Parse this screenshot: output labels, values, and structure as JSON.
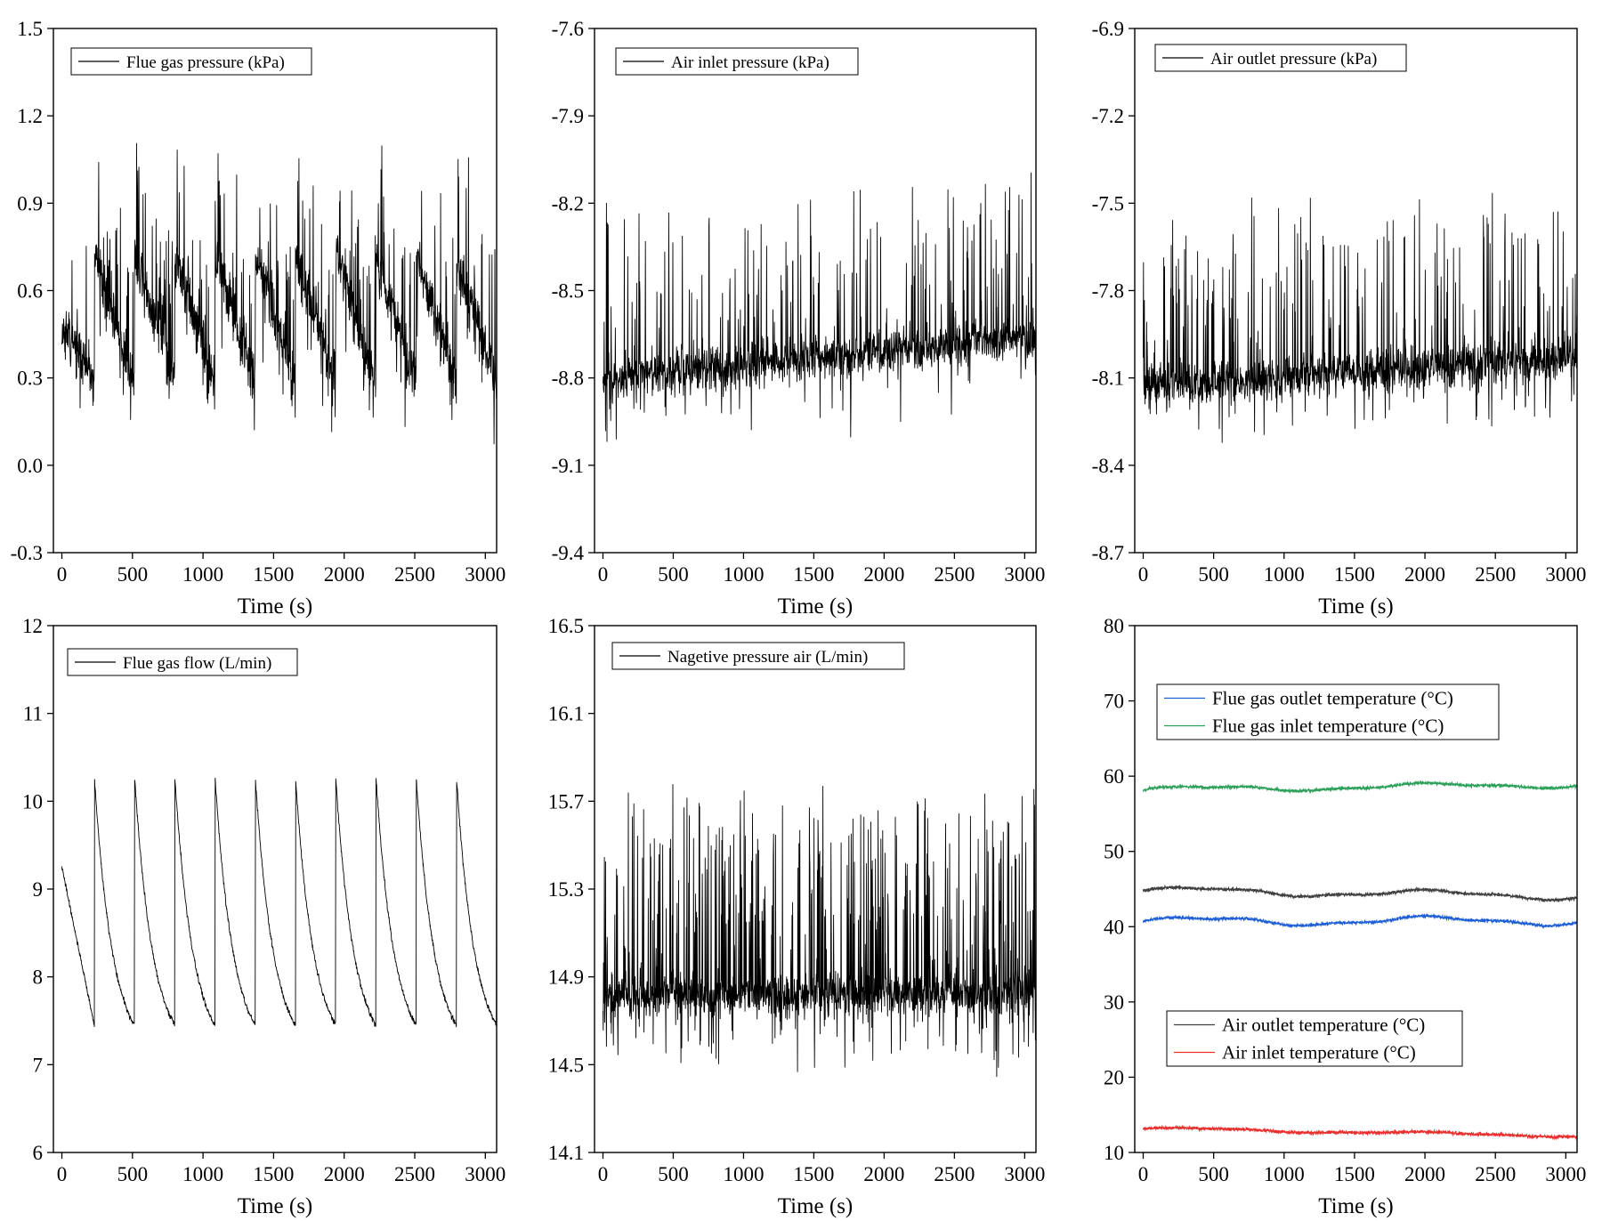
{
  "chart_data": [
    {
      "type": "line",
      "xlabel": "Time (s)",
      "x_ticks": [
        0,
        500,
        1000,
        1500,
        2000,
        2500,
        3000
      ],
      "xlim": [
        -60,
        3080
      ],
      "y_ticks": [
        -0.3,
        0.0,
        0.3,
        0.6,
        0.9,
        1.2,
        1.5
      ],
      "y_tick_labels": [
        "-0.3",
        "0.0",
        "0.3",
        "0.6",
        "0.9",
        "1.2",
        "1.5"
      ],
      "ylim": [
        -0.3,
        1.5
      ],
      "legend_position": "top-left",
      "series": [
        {
          "name": "Flue gas pressure (kPa)",
          "color": "#000000",
          "pattern": "sawtooth",
          "period": 285,
          "t0": 230,
          "start": 0.5,
          "high": 0.72,
          "low": 0.28,
          "noise": 0.09,
          "spike_prob": 0.12,
          "spike_amp": 0.45,
          "seed": 11
        }
      ]
    },
    {
      "type": "line",
      "xlabel": "Time (s)",
      "x_ticks": [
        0,
        500,
        1000,
        1500,
        2000,
        2500,
        3000
      ],
      "xlim": [
        -60,
        3080
      ],
      "y_ticks": [
        -9.4,
        -9.1,
        -8.8,
        -8.5,
        -8.2,
        -7.9,
        -7.6
      ],
      "y_tick_labels": [
        "-9.4",
        "-9.1",
        "-8.8",
        "-8.5",
        "-8.2",
        "-7.9",
        "-7.6"
      ],
      "ylim": [
        -9.4,
        -7.6
      ],
      "legend_position": "top-left",
      "series": [
        {
          "name": "Air inlet pressure (kPa)",
          "color": "#000000",
          "pattern": "noisy",
          "base_start": -8.8,
          "base_end": -8.66,
          "noise": 0.07,
          "spike_prob": 0.1,
          "spike_amp": 0.55,
          "seed": 23
        }
      ]
    },
    {
      "type": "line",
      "xlabel": "Time (s)",
      "x_ticks": [
        0,
        500,
        1000,
        1500,
        2000,
        2500,
        3000
      ],
      "xlim": [
        -60,
        3080
      ],
      "y_ticks": [
        -8.7,
        -8.4,
        -8.1,
        -7.8,
        -7.5,
        -7.2,
        -6.9
      ],
      "y_tick_labels": [
        "-8.7",
        "-8.4",
        "-8.1",
        "-7.8",
        "-7.5",
        "-7.2",
        "-6.9"
      ],
      "ylim": [
        -8.7,
        -6.9
      ],
      "legend_position": "top-left",
      "series": [
        {
          "name": "Air outlet pressure (kPa)",
          "color": "#000000",
          "pattern": "noisy",
          "base_start": -8.13,
          "base_end": -8.03,
          "noise": 0.07,
          "spike_prob": 0.12,
          "spike_amp": 0.55,
          "seed": 37
        }
      ]
    },
    {
      "type": "line",
      "xlabel": "Time (s)",
      "x_ticks": [
        0,
        500,
        1000,
        1500,
        2000,
        2500,
        3000
      ],
      "xlim": [
        -60,
        3080
      ],
      "y_ticks": [
        6,
        7,
        8,
        9,
        10,
        11,
        12
      ],
      "y_tick_labels": [
        "6",
        "7",
        "8",
        "9",
        "10",
        "11",
        "12"
      ],
      "ylim": [
        6,
        12
      ],
      "legend_position": "top-left",
      "series": [
        {
          "name": "Flue gas flow (L/min)",
          "color": "#000000",
          "pattern": "decay",
          "period": 285,
          "t0": 230,
          "start": 9.25,
          "high": 10.28,
          "low": 7.45,
          "noise": 0.03,
          "seed": 41
        }
      ]
    },
    {
      "type": "line",
      "xlabel": "Time (s)",
      "x_ticks": [
        0,
        500,
        1000,
        1500,
        2000,
        2500,
        3000
      ],
      "xlim": [
        -60,
        3080
      ],
      "y_ticks": [
        14.1,
        14.5,
        14.9,
        15.3,
        15.7,
        16.1,
        16.5
      ],
      "y_tick_labels": [
        "14.1",
        "14.5",
        "14.9",
        "15.3",
        "15.7",
        "16.1",
        "16.5"
      ],
      "ylim": [
        14.1,
        16.5
      ],
      "legend_position": "top-left",
      "series": [
        {
          "name": "Nagetive pressure air (L/min)",
          "color": "#000000",
          "pattern": "noisy",
          "base_start": 14.82,
          "base_end": 14.82,
          "noise": 0.09,
          "spike_prob": 0.22,
          "spike_amp": 0.9,
          "seed": 53
        }
      ]
    },
    {
      "type": "line",
      "xlabel": "Time (s)",
      "x_ticks": [
        0,
        500,
        1000,
        1500,
        2000,
        2500,
        3000
      ],
      "xlim": [
        -60,
        3080
      ],
      "y_ticks": [
        10,
        20,
        30,
        40,
        50,
        60,
        70,
        80
      ],
      "y_tick_labels": [
        "10",
        "20",
        "30",
        "40",
        "50",
        "60",
        "70",
        "80"
      ],
      "ylim": [
        10,
        80
      ],
      "legend_position": "top-left and bottom-left",
      "series": [
        {
          "name": "Flue gas outlet temperature (°C)",
          "color": "#1f5fd6",
          "pattern": "smooth",
          "base_start": 40.7,
          "base_end": 40.8,
          "wave": 0.5,
          "noise": 0.18,
          "seed": 61
        },
        {
          "name": "Flue gas inlet temperature (°C)",
          "color": "#2ca05a",
          "pattern": "smooth",
          "base_start": 58.2,
          "base_end": 58.9,
          "wave": 0.35,
          "noise": 0.18,
          "seed": 67
        },
        {
          "name": "Air outlet temperature (°C)",
          "color": "#404040",
          "pattern": "smooth",
          "base_start": 44.8,
          "base_end": 44.1,
          "wave": 0.45,
          "noise": 0.18,
          "seed": 71
        },
        {
          "name": "Air inlet temperature (°C)",
          "color": "#e8302f",
          "pattern": "smooth",
          "base_start": 13.2,
          "base_end": 12.2,
          "wave": 0.15,
          "noise": 0.2,
          "seed": 79
        }
      ]
    }
  ]
}
